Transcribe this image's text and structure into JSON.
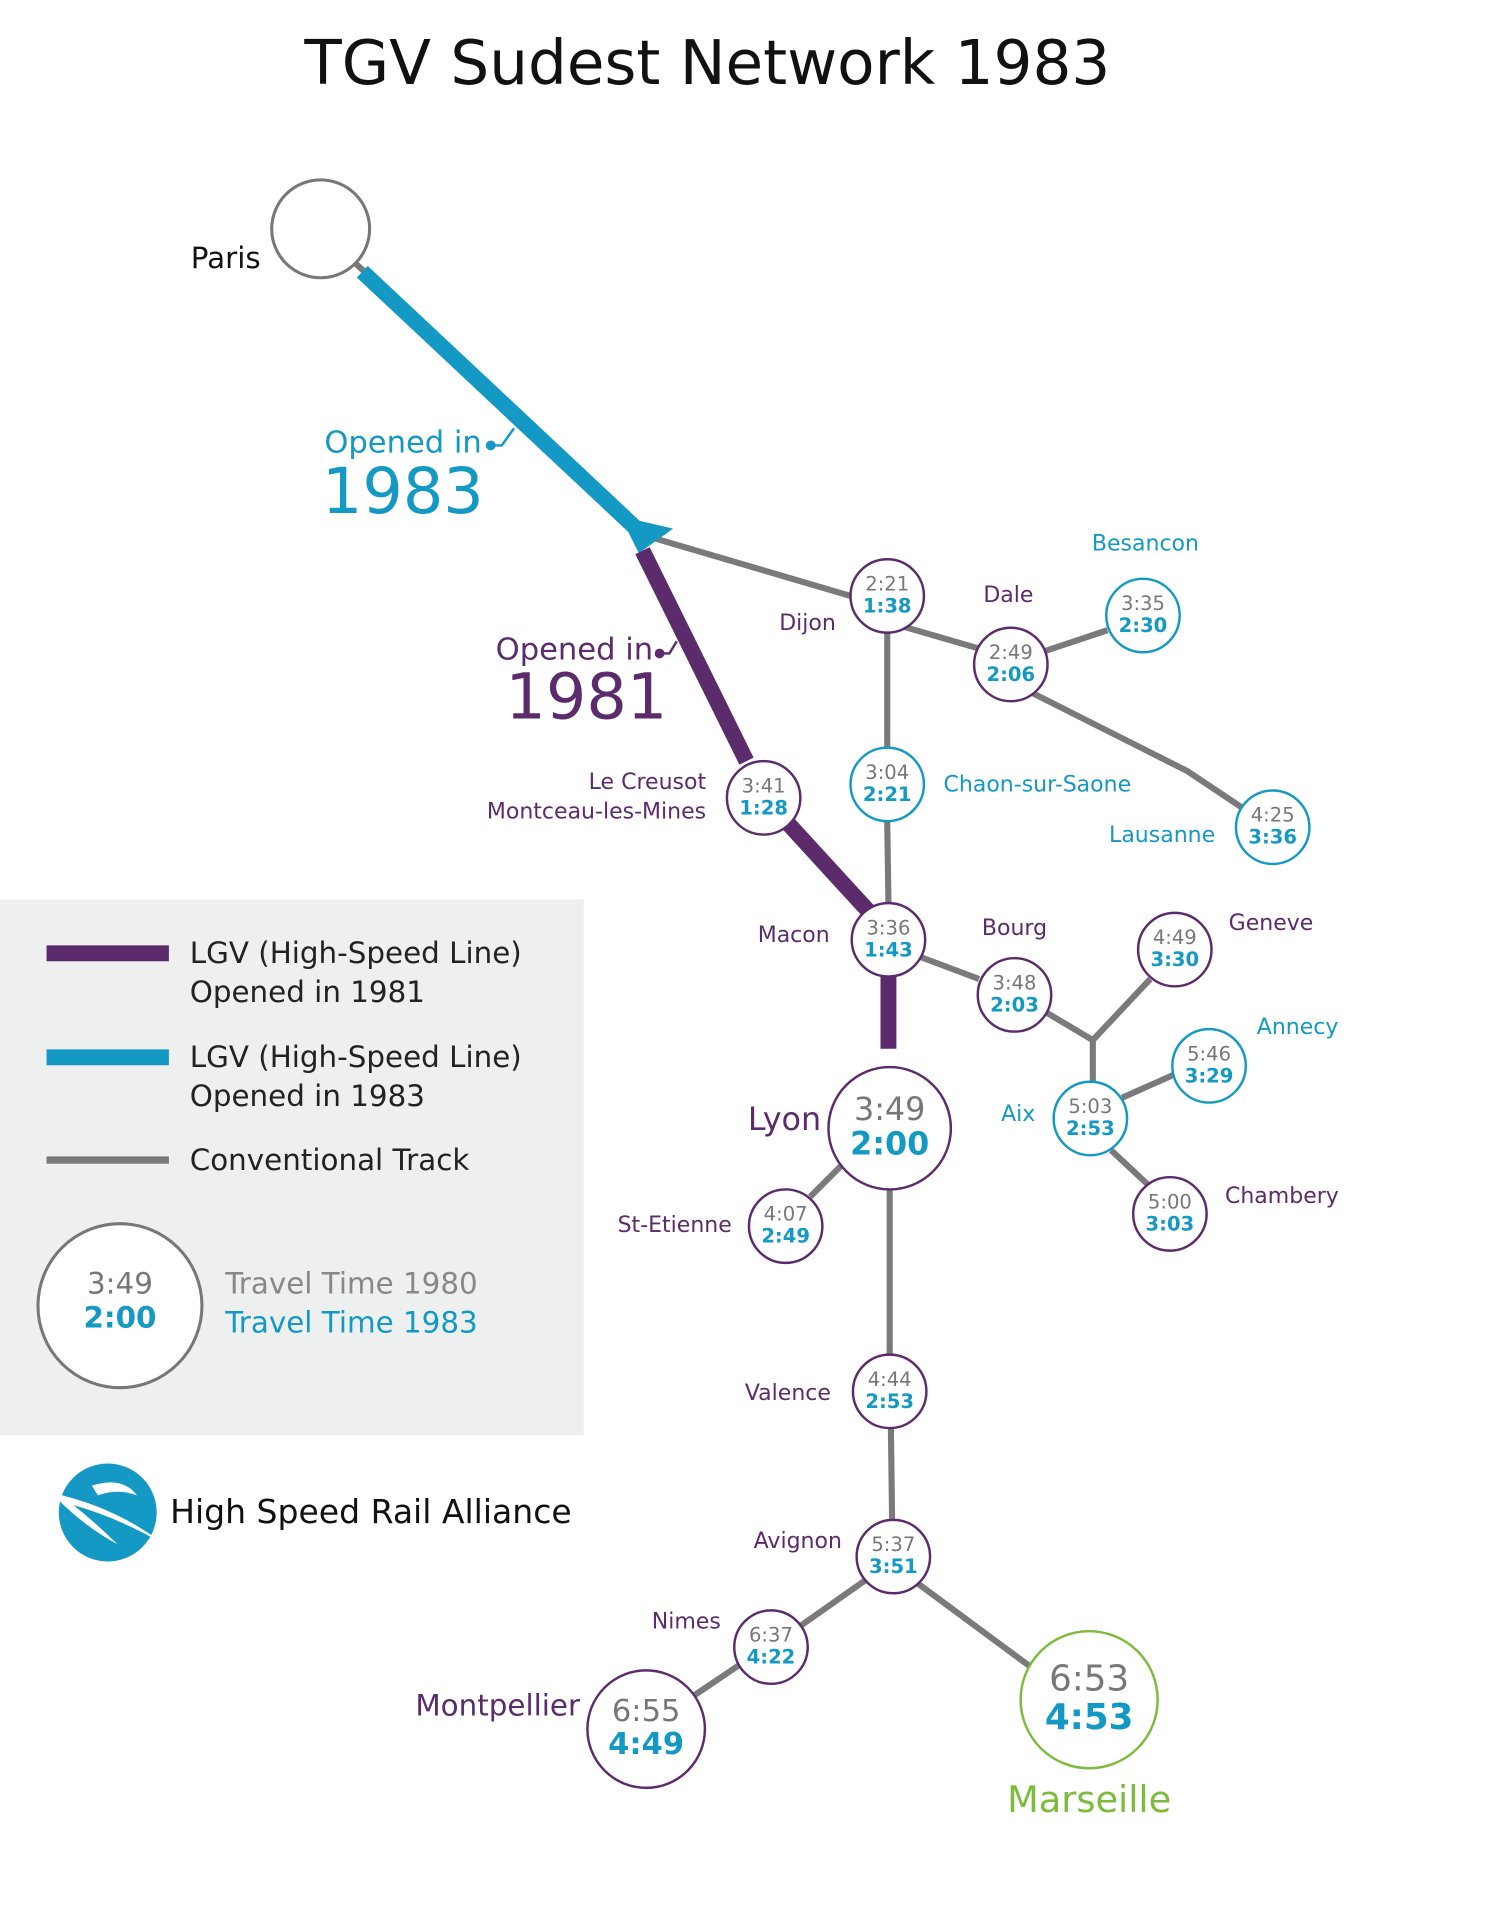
{
  "title": "TGV Sudest Network 1983",
  "annotations": [
    {
      "label": "Opened in",
      "year": "1983"
    },
    {
      "label": "Opened in",
      "year": "1981"
    }
  ],
  "legend": {
    "items": [
      {
        "label": "LGV (High-Speed Line)",
        "sublabel": "Opened in 1981"
      },
      {
        "label": "LGV (High-Speed Line)",
        "sublabel": "Opened in 1983"
      },
      {
        "label": "Conventional Track"
      }
    ],
    "sample": {
      "time_1980": "3:49",
      "time_1983": "2:00",
      "label_1980": "Travel Time 1980",
      "label_1983": "Travel Time 1983"
    }
  },
  "logo": {
    "text": "High Speed Rail Alliance"
  },
  "stations": [
    {
      "name": "Paris"
    },
    {
      "name": "Dijon",
      "time_1980": "2:21",
      "time_1983": "1:38"
    },
    {
      "name": "Dale",
      "time_1980": "2:49",
      "time_1983": "2:06"
    },
    {
      "name": "Besancon",
      "time_1980": "3:35",
      "time_1983": "2:30"
    },
    {
      "name": "Chaon-sur-Saone",
      "time_1980": "3:04",
      "time_1983": "2:21"
    },
    {
      "name": "Lausanne",
      "time_1980": "4:25",
      "time_1983": "3:36"
    },
    {
      "name_lines": [
        "Le Creusot",
        "Montceau-les-Mines"
      ],
      "time_1980": "3:41",
      "time_1983": "1:28"
    },
    {
      "name": "Macon",
      "time_1980": "3:36",
      "time_1983": "1:43"
    },
    {
      "name": "Bourg",
      "time_1980": "3:48",
      "time_1983": "2:03"
    },
    {
      "name": "Geneve",
      "time_1980": "4:49",
      "time_1983": "3:30"
    },
    {
      "name": "Annecy",
      "time_1980": "5:46",
      "time_1983": "3:29"
    },
    {
      "name": "Aix",
      "time_1980": "5:03",
      "time_1983": "2:53"
    },
    {
      "name": "Chambery",
      "time_1980": "5:00",
      "time_1983": "3:03"
    },
    {
      "name": "Lyon",
      "time_1980": "3:49",
      "time_1983": "2:00"
    },
    {
      "name": "St-Etienne",
      "time_1980": "4:07",
      "time_1983": "2:49"
    },
    {
      "name": "Valence",
      "time_1980": "4:44",
      "time_1983": "2:53"
    },
    {
      "name": "Avignon",
      "time_1980": "5:37",
      "time_1983": "3:51"
    },
    {
      "name": "Nimes",
      "time_1980": "6:37",
      "time_1983": "4:22"
    },
    {
      "name": "Montpellier",
      "time_1980": "6:55",
      "time_1983": "4:49"
    },
    {
      "name": "Marseille",
      "time_1980": "6:53",
      "time_1983": "4:53"
    }
  ]
}
